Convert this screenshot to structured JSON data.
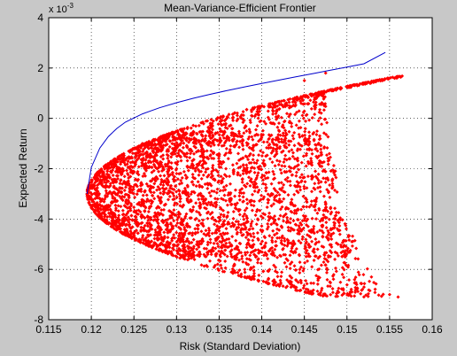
{
  "chart_data": {
    "type": "scatter",
    "title": "Mean-Variance-Efficient Frontier",
    "xlabel": "Risk (Standard Deviation)",
    "ylabel": "Expected Return",
    "xlim": [
      0.115,
      0.16
    ],
    "ylim": [
      -8,
      4
    ],
    "y_exponent_label": "x 10",
    "y_exponent_power": "-3",
    "grid": true,
    "legend": "none",
    "x_ticks": [
      "0.115",
      "0.12",
      "0.125",
      "0.13",
      "0.135",
      "0.14",
      "0.145",
      "0.15",
      "0.155",
      "0.16"
    ],
    "y_ticks": [
      "-8",
      "-6",
      "-4",
      "-2",
      "0",
      "2",
      "4"
    ],
    "frontier": {
      "color": "#0000cc",
      "x": [
        0.1195,
        0.12,
        0.121,
        0.122,
        0.123,
        0.124,
        0.126,
        0.128,
        0.13,
        0.132,
        0.134,
        0.136,
        0.138,
        0.14,
        0.142,
        0.144,
        0.146,
        0.148,
        0.15,
        0.152,
        0.1545
      ],
      "y": [
        -3.0,
        -1.95,
        -1.18,
        -0.72,
        -0.4,
        -0.15,
        0.18,
        0.42,
        0.62,
        0.8,
        0.96,
        1.11,
        1.25,
        1.39,
        1.52,
        1.65,
        1.78,
        1.91,
        2.04,
        2.17,
        2.62
      ]
    },
    "portfolios": {
      "color": "#ff0000",
      "count": 4000,
      "region": "random feasible portfolios filling the area to the right of the frontier, x from 0.1195 to about 0.156, y from about -7.1 to 2.1",
      "samples": [
        {
          "x": 0.1195,
          "y": -3.0
        },
        {
          "x": 0.122,
          "y": -2.5
        },
        {
          "x": 0.124,
          "y": -3.5
        },
        {
          "x": 0.126,
          "y": -1.0
        },
        {
          "x": 0.128,
          "y": -4.5
        },
        {
          "x": 0.13,
          "y": -2.0
        },
        {
          "x": 0.132,
          "y": -5.5
        },
        {
          "x": 0.135,
          "y": -1.5
        },
        {
          "x": 0.138,
          "y": -6.0
        },
        {
          "x": 0.14,
          "y": 0.5
        },
        {
          "x": 0.142,
          "y": -4.0
        },
        {
          "x": 0.145,
          "y": 1.5
        },
        {
          "x": 0.1475,
          "y": 1.8
        },
        {
          "x": 0.148,
          "y": -6.5
        },
        {
          "x": 0.152,
          "y": -6.7
        },
        {
          "x": 0.155,
          "y": -7.0
        },
        {
          "x": 0.156,
          "y": -7.1
        }
      ]
    }
  }
}
